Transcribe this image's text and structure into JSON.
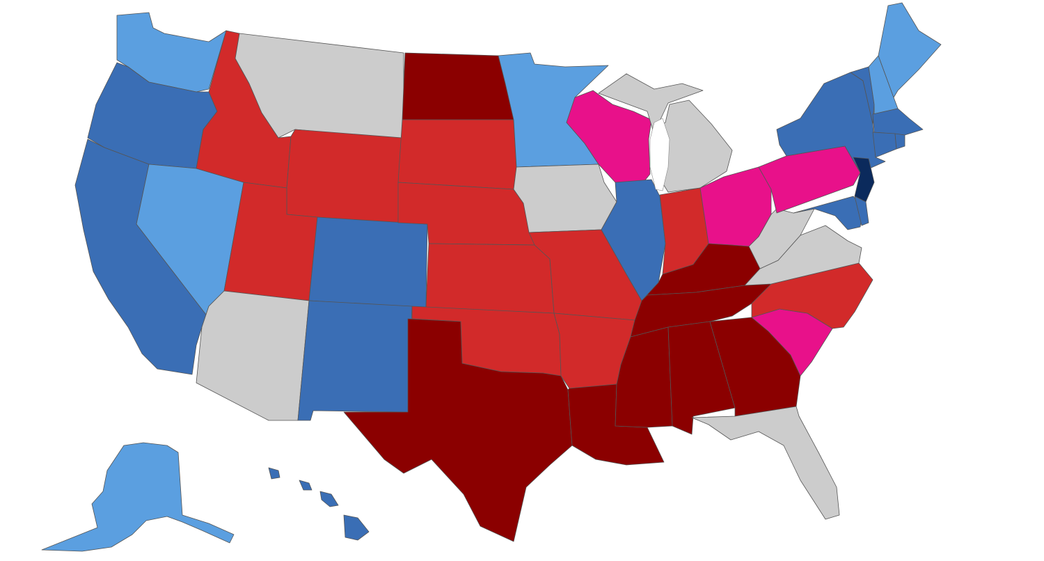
{
  "map": {
    "colors": {
      "safe_dem": "#3a6eb5",
      "likely_dem": "#5b9fe0",
      "solid_dem_dark": "#0b2a5c",
      "safe_rep": "#d22a2a",
      "strong_rep": "#8b0000",
      "tossup": "#e8118a",
      "no_race": "#cccccc"
    },
    "states": {
      "WA": "likely_dem",
      "OR": "safe_dem",
      "CA": "safe_dem",
      "NV": "likely_dem",
      "ID": "safe_rep",
      "MT": "no_race",
      "WY": "safe_rep",
      "UT": "safe_rep",
      "AZ": "no_race",
      "CO": "safe_dem",
      "NM": "safe_dem",
      "ND": "strong_rep",
      "SD": "safe_rep",
      "NE": "safe_rep",
      "KS": "safe_rep",
      "OK": "safe_rep",
      "TX": "strong_rep",
      "MN": "likely_dem",
      "IA": "no_race",
      "MO": "safe_rep",
      "AR": "safe_rep",
      "LA": "strong_rep",
      "WI": "tossup",
      "IL": "safe_dem",
      "MI": "no_race",
      "IN": "safe_rep",
      "OH": "tossup",
      "KY": "strong_rep",
      "TN": "strong_rep",
      "MS": "strong_rep",
      "AL": "strong_rep",
      "GA": "strong_rep",
      "FL": "no_race",
      "SC": "tossup",
      "NC": "safe_rep",
      "VA": "no_race",
      "WV": "no_race",
      "PA": "tossup",
      "NY": "safe_dem",
      "VT": "safe_dem",
      "NH": "likely_dem",
      "ME": "likely_dem",
      "MA": "safe_dem",
      "CT": "safe_dem",
      "RI": "safe_dem",
      "NJ": "solid_dem_dark",
      "DE": "safe_dem",
      "MD": "safe_dem",
      "AK": "likely_dem",
      "HI": "safe_dem"
    }
  }
}
